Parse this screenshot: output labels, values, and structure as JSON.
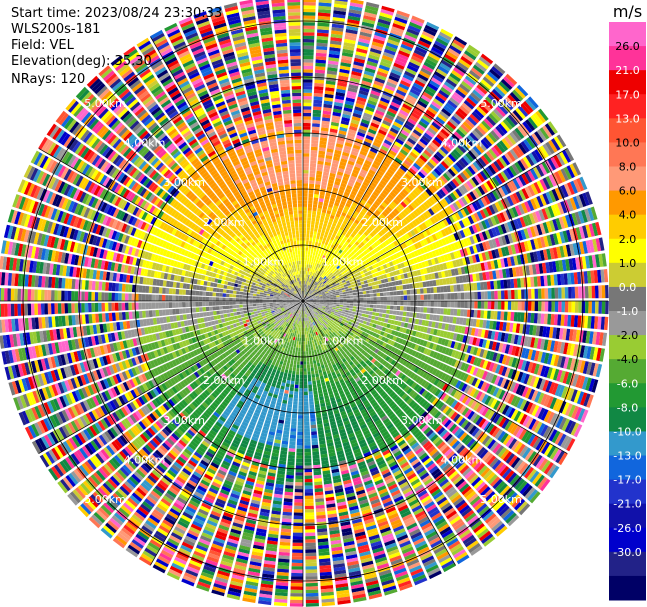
{
  "header": {
    "start_time": "Start time: 2023/08/24 23:30:33",
    "site": "WLS200s-181",
    "field": "Field: VEL",
    "elevation": "Elevation(deg): 35.30",
    "nrays": "NRays: 120"
  },
  "chart_data": {
    "type": "ppi-polar-heatmap",
    "field": "VEL",
    "units": "m/s",
    "nrays": 120,
    "elevation_deg": 35.3,
    "range_rings_km": [
      1.0,
      2.0,
      3.0,
      4.0,
      5.0
    ],
    "ring_labels": [
      "1.00km",
      "2.00km",
      "3.00km",
      "4.00km",
      "5.00km"
    ],
    "max_range_km": 5.45,
    "colorbar": {
      "title": "m/s",
      "ticks": [
        "26.0",
        "21.0",
        "17.0",
        "13.0",
        "10.0",
        "8.0",
        "6.0",
        "4.0",
        "2.0",
        "1.0",
        "0.0",
        "-1.0",
        "-2.0",
        "-4.0",
        "-6.0",
        "-8.0",
        "-10.0",
        "-13.0",
        "-17.0",
        "-21.0",
        "-26.0",
        "-30.0"
      ],
      "colors": [
        "#ff66cc",
        "#ff3399",
        "#ee0000",
        "#ff2222",
        "#ff5533",
        "#ff7755",
        "#ff9977",
        "#ff9900",
        "#ffcc00",
        "#ffff00",
        "#cccc33",
        "#777777",
        "#999999",
        "#99cc33",
        "#55aa33",
        "#229933",
        "#118844",
        "#3399cc",
        "#1166dd",
        "#2233cc",
        "#1111aa",
        "#0000cc",
        "#222288",
        "#000066"
      ]
    },
    "pattern": {
      "near_field_north": "positive velocities (yellow to orange/salmon, ~1 to 8 m/s)",
      "near_field_south": "negative velocities (green, ~-2 to -6 m/s; blue ~-8 to -10 m/s south-southwest)",
      "zero_line": "grey near east-west axis",
      "far_field": "noisy random colors beyond ~3 km"
    }
  }
}
